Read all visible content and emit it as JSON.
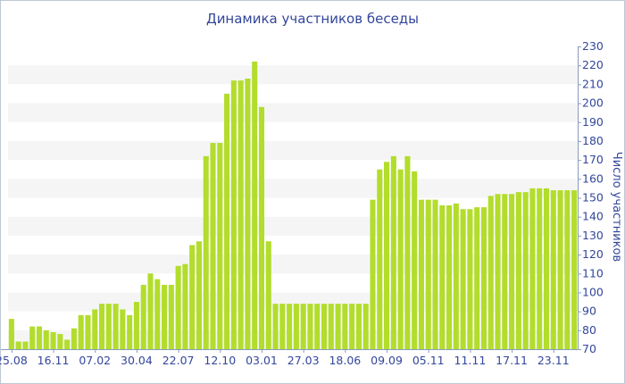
{
  "chart_data": {
    "type": "bar",
    "title": "Динамика участников беседы",
    "xlabel": "",
    "ylabel": "Число участников",
    "ylim": [
      70,
      230
    ],
    "yticks": [
      70,
      80,
      90,
      100,
      110,
      120,
      130,
      140,
      150,
      160,
      170,
      180,
      190,
      200,
      210,
      220,
      230
    ],
    "ytick_side": "right",
    "grid": "alternating horizontal bands",
    "xtick_labels": [
      {
        "label": "25.08",
        "index": 0
      },
      {
        "label": "16.11",
        "index": 6
      },
      {
        "label": "07.02",
        "index": 12
      },
      {
        "label": "30.04",
        "index": 18
      },
      {
        "label": "22.07",
        "index": 24
      },
      {
        "label": "12.10",
        "index": 30
      },
      {
        "label": "03.01",
        "index": 36
      },
      {
        "label": "27.03",
        "index": 42
      },
      {
        "label": "18.06",
        "index": 48
      },
      {
        "label": "09.09",
        "index": 54
      },
      {
        "label": "05.11",
        "index": 60
      },
      {
        "label": "11.11",
        "index": 66
      },
      {
        "label": "17.11",
        "index": 72
      },
      {
        "label": "23.11",
        "index": 78
      }
    ],
    "values": [
      86,
      74,
      74,
      82,
      82,
      80,
      79,
      78,
      75,
      81,
      88,
      88,
      91,
      94,
      94,
      94,
      91,
      88,
      95,
      104,
      110,
      107,
      104,
      104,
      114,
      115,
      125,
      127,
      172,
      179,
      179,
      205,
      212,
      212,
      213,
      222,
      198,
      127,
      94,
      94,
      94,
      94,
      94,
      94,
      94,
      94,
      94,
      94,
      94,
      94,
      94,
      94,
      149,
      165,
      169,
      172,
      165,
      172,
      164,
      149,
      149,
      149,
      146,
      146,
      147,
      144,
      144,
      145,
      145,
      151,
      152,
      152,
      152,
      153,
      153,
      155,
      155,
      155,
      154,
      154,
      154,
      154
    ],
    "colors": {
      "bar": "#b2dd2c",
      "band": "#f5f5f5",
      "text": "#33469b",
      "axis": "#8a9bbf"
    }
  }
}
